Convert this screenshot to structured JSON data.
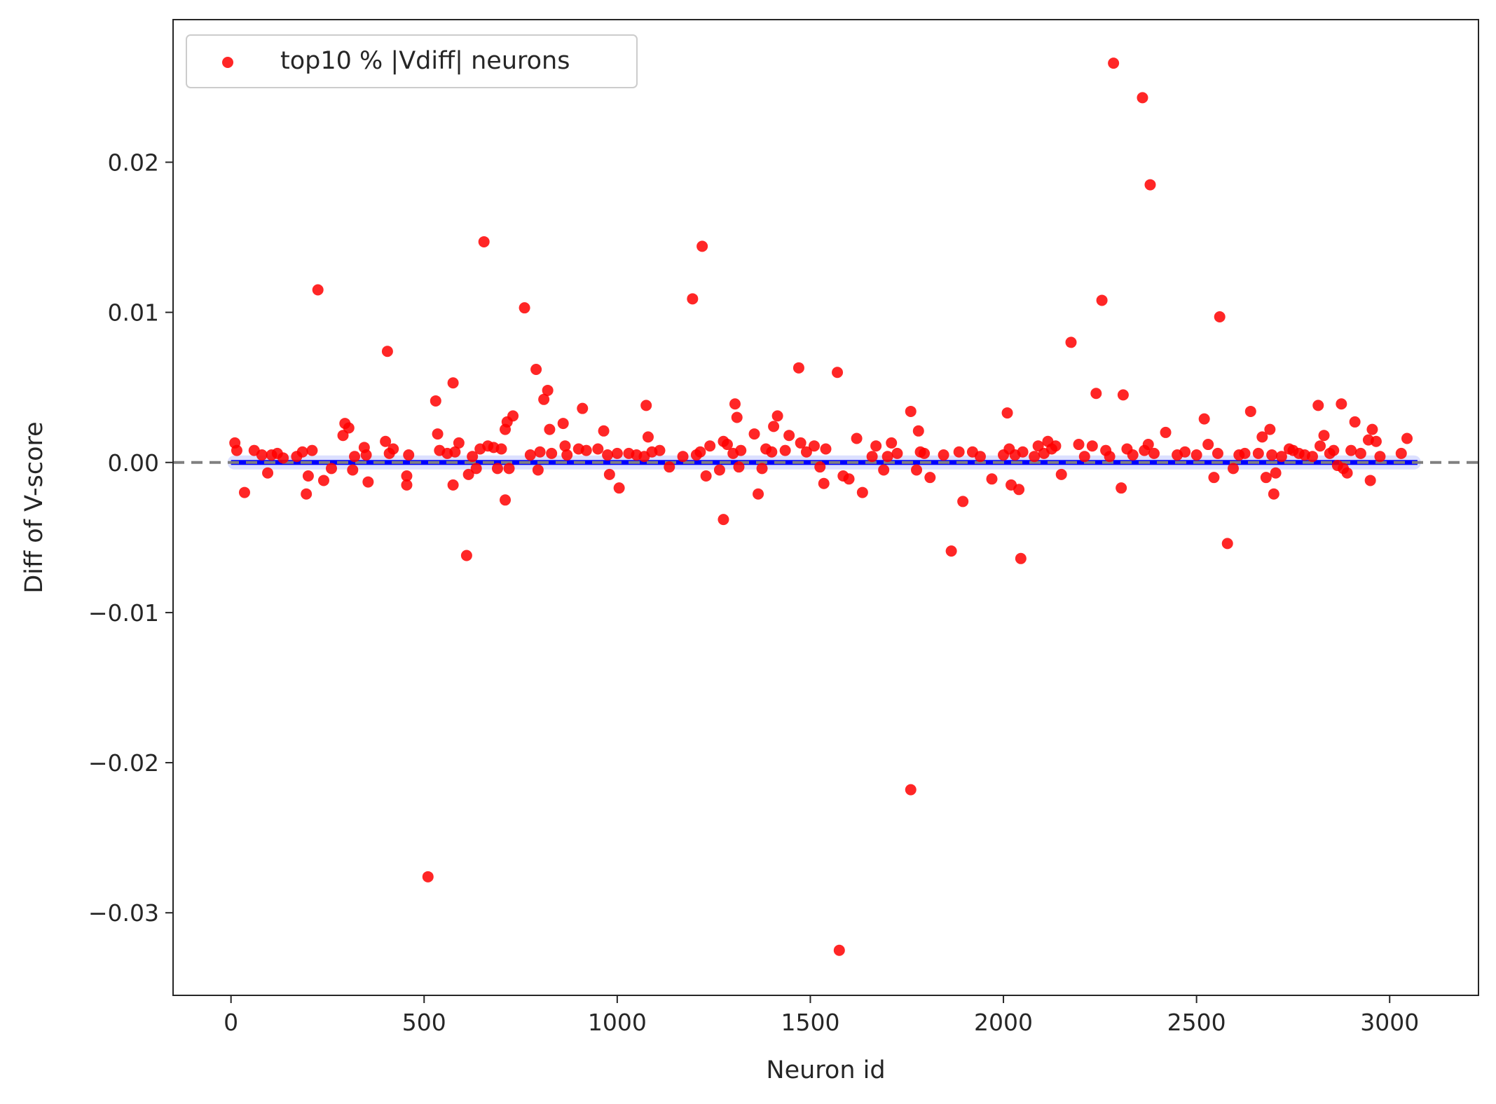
{
  "chart_data": {
    "type": "scatter",
    "title": "",
    "xlabel": "Neuron id",
    "ylabel": "Diff of V-score",
    "xlim": [
      -150,
      3230
    ],
    "ylim": [
      -0.0355,
      0.0295
    ],
    "xticks": [
      0,
      500,
      1000,
      1500,
      2000,
      2500,
      3000
    ],
    "xtick_labels": [
      "0",
      "500",
      "1000",
      "1500",
      "2000",
      "2500",
      "3000"
    ],
    "yticks": [
      -0.03,
      -0.02,
      -0.01,
      0.0,
      0.01,
      0.02
    ],
    "ytick_labels": [
      "−0.03",
      "−0.02",
      "−0.01",
      "0.00",
      "0.01",
      "0.02"
    ],
    "reference_line": {
      "y": 0,
      "style": "dashed",
      "color": "#808080"
    },
    "grid": false,
    "legend": {
      "position": "upper-left",
      "entries": [
        "top10 % |Vdiff| neurons"
      ]
    },
    "series": [
      {
        "kind": "line",
        "color": "#0000ff",
        "x": [
          0,
          3072
        ],
        "y": [
          0,
          0
        ]
      },
      {
        "name": "top10 % |Vdiff| neurons",
        "kind": "scatter",
        "color": "#ff0000",
        "points": [
          [
            10,
            0.0013
          ],
          [
            15,
            0.0008
          ],
          [
            35,
            -0.002
          ],
          [
            60,
            0.0008
          ],
          [
            80,
            0.0005
          ],
          [
            95,
            -0.0007
          ],
          [
            105,
            0.0005
          ],
          [
            120,
            0.0006
          ],
          [
            135,
            0.0003
          ],
          [
            170,
            0.0004
          ],
          [
            185,
            0.0007
          ],
          [
            195,
            -0.0021
          ],
          [
            200,
            -0.0009
          ],
          [
            210,
            0.0008
          ],
          [
            225,
            0.0115
          ],
          [
            240,
            -0.0012
          ],
          [
            260,
            -0.0004
          ],
          [
            290,
            0.0018
          ],
          [
            295,
            0.0026
          ],
          [
            305,
            0.0023
          ],
          [
            315,
            -0.0005
          ],
          [
            320,
            0.0004
          ],
          [
            345,
            0.001
          ],
          [
            350,
            0.0005
          ],
          [
            355,
            -0.0013
          ],
          [
            400,
            0.0014
          ],
          [
            405,
            0.0074
          ],
          [
            410,
            0.0006
          ],
          [
            420,
            0.0009
          ],
          [
            455,
            -0.0009
          ],
          [
            455,
            -0.0015
          ],
          [
            460,
            0.0005
          ],
          [
            510,
            -0.0276
          ],
          [
            530,
            0.0041
          ],
          [
            535,
            0.0019
          ],
          [
            540,
            0.0008
          ],
          [
            560,
            0.0006
          ],
          [
            575,
            0.0053
          ],
          [
            575,
            -0.0015
          ],
          [
            580,
            0.0007
          ],
          [
            590,
            0.0013
          ],
          [
            610,
            -0.0062
          ],
          [
            615,
            -0.0008
          ],
          [
            625,
            0.0004
          ],
          [
            635,
            -0.0004
          ],
          [
            645,
            0.0009
          ],
          [
            655,
            0.0147
          ],
          [
            665,
            0.0011
          ],
          [
            680,
            0.001
          ],
          [
            690,
            -0.0004
          ],
          [
            700,
            0.0009
          ],
          [
            710,
            -0.0025
          ],
          [
            710,
            0.0022
          ],
          [
            715,
            0.0027
          ],
          [
            720,
            -0.0004
          ],
          [
            730,
            0.0031
          ],
          [
            760,
            0.0103
          ],
          [
            775,
            0.0005
          ],
          [
            790,
            0.0062
          ],
          [
            795,
            -0.0005
          ],
          [
            800,
            0.0007
          ],
          [
            810,
            0.0042
          ],
          [
            820,
            0.0048
          ],
          [
            825,
            0.0022
          ],
          [
            830,
            0.0006
          ],
          [
            860,
            0.0026
          ],
          [
            865,
            0.0011
          ],
          [
            870,
            0.0005
          ],
          [
            900,
            0.0009
          ],
          [
            910,
            0.0036
          ],
          [
            920,
            0.0008
          ],
          [
            950,
            0.0009
          ],
          [
            965,
            0.0021
          ],
          [
            975,
            0.0005
          ],
          [
            980,
            -0.0008
          ],
          [
            1000,
            0.0006
          ],
          [
            1005,
            -0.0017
          ],
          [
            1030,
            0.0006
          ],
          [
            1050,
            0.0005
          ],
          [
            1070,
            0.0004
          ],
          [
            1075,
            0.0038
          ],
          [
            1080,
            0.0017
          ],
          [
            1090,
            0.0007
          ],
          [
            1110,
            0.0008
          ],
          [
            1135,
            -0.0003
          ],
          [
            1170,
            0.0004
          ],
          [
            1195,
            0.0109
          ],
          [
            1205,
            0.0005
          ],
          [
            1215,
            0.0007
          ],
          [
            1220,
            0.0144
          ],
          [
            1230,
            -0.0009
          ],
          [
            1240,
            0.0011
          ],
          [
            1265,
            -0.0005
          ],
          [
            1275,
            -0.0038
          ],
          [
            1275,
            0.0014
          ],
          [
            1285,
            0.0012
          ],
          [
            1300,
            0.0006
          ],
          [
            1305,
            0.0039
          ],
          [
            1310,
            0.003
          ],
          [
            1315,
            -0.0003
          ],
          [
            1320,
            0.0008
          ],
          [
            1355,
            0.0019
          ],
          [
            1365,
            -0.0021
          ],
          [
            1375,
            -0.0004
          ],
          [
            1385,
            0.0009
          ],
          [
            1400,
            0.0007
          ],
          [
            1405,
            0.0024
          ],
          [
            1415,
            0.0031
          ],
          [
            1435,
            0.0008
          ],
          [
            1445,
            0.0018
          ],
          [
            1470,
            0.0063
          ],
          [
            1475,
            0.0013
          ],
          [
            1490,
            0.0007
          ],
          [
            1510,
            0.0011
          ],
          [
            1525,
            -0.0003
          ],
          [
            1535,
            -0.0014
          ],
          [
            1540,
            0.0009
          ],
          [
            1570,
            0.006
          ],
          [
            1575,
            -0.0325
          ],
          [
            1585,
            -0.0009
          ],
          [
            1600,
            -0.0011
          ],
          [
            1620,
            0.0016
          ],
          [
            1635,
            -0.002
          ],
          [
            1660,
            0.0004
          ],
          [
            1670,
            0.0011
          ],
          [
            1690,
            -0.0005
          ],
          [
            1700,
            0.0004
          ],
          [
            1710,
            0.0013
          ],
          [
            1725,
            0.0006
          ],
          [
            1760,
            0.0034
          ],
          [
            1760,
            -0.0218
          ],
          [
            1775,
            -0.0005
          ],
          [
            1780,
            0.0021
          ],
          [
            1785,
            0.0007
          ],
          [
            1795,
            0.0006
          ],
          [
            1810,
            -0.001
          ],
          [
            1845,
            0.0005
          ],
          [
            1865,
            -0.0059
          ],
          [
            1885,
            0.0007
          ],
          [
            1895,
            -0.0026
          ],
          [
            1920,
            0.0007
          ],
          [
            1940,
            0.0004
          ],
          [
            1970,
            -0.0011
          ],
          [
            2000,
            0.0005
          ],
          [
            2010,
            0.0033
          ],
          [
            2015,
            0.0009
          ],
          [
            2020,
            -0.0015
          ],
          [
            2030,
            0.0005
          ],
          [
            2040,
            -0.0018
          ],
          [
            2045,
            -0.0064
          ],
          [
            2050,
            0.0007
          ],
          [
            2080,
            0.0004
          ],
          [
            2090,
            0.0011
          ],
          [
            2105,
            0.0006
          ],
          [
            2115,
            0.0014
          ],
          [
            2125,
            0.0009
          ],
          [
            2135,
            0.0011
          ],
          [
            2150,
            -0.0008
          ],
          [
            2175,
            0.008
          ],
          [
            2195,
            0.0012
          ],
          [
            2210,
            0.0004
          ],
          [
            2230,
            0.0011
          ],
          [
            2240,
            0.0046
          ],
          [
            2255,
            0.0108
          ],
          [
            2265,
            0.0008
          ],
          [
            2275,
            0.0004
          ],
          [
            2285,
            0.0266
          ],
          [
            2305,
            -0.0017
          ],
          [
            2310,
            0.0045
          ],
          [
            2320,
            0.0009
          ],
          [
            2335,
            0.0005
          ],
          [
            2360,
            0.0243
          ],
          [
            2365,
            0.0008
          ],
          [
            2375,
            0.0012
          ],
          [
            2380,
            0.0185
          ],
          [
            2390,
            0.0006
          ],
          [
            2420,
            0.002
          ],
          [
            2450,
            0.0005
          ],
          [
            2470,
            0.0007
          ],
          [
            2500,
            0.0005
          ],
          [
            2520,
            0.0029
          ],
          [
            2530,
            0.0012
          ],
          [
            2545,
            -0.001
          ],
          [
            2555,
            0.0006
          ],
          [
            2560,
            0.0097
          ],
          [
            2580,
            -0.0054
          ],
          [
            2595,
            -0.0004
          ],
          [
            2610,
            0.0005
          ],
          [
            2625,
            0.0006
          ],
          [
            2640,
            0.0034
          ],
          [
            2660,
            0.0006
          ],
          [
            2670,
            0.0017
          ],
          [
            2680,
            -0.001
          ],
          [
            2690,
            0.0022
          ],
          [
            2695,
            0.0005
          ],
          [
            2700,
            -0.0021
          ],
          [
            2705,
            -0.0007
          ],
          [
            2720,
            0.0004
          ],
          [
            2740,
            0.0009
          ],
          [
            2750,
            0.0008
          ],
          [
            2765,
            0.0006
          ],
          [
            2780,
            0.0005
          ],
          [
            2800,
            0.0004
          ],
          [
            2815,
            0.0038
          ],
          [
            2820,
            0.0011
          ],
          [
            2830,
            0.0018
          ],
          [
            2845,
            0.0006
          ],
          [
            2855,
            0.0008
          ],
          [
            2865,
            -0.0002
          ],
          [
            2875,
            0.0039
          ],
          [
            2880,
            -0.0004
          ],
          [
            2890,
            -0.0007
          ],
          [
            2900,
            0.0008
          ],
          [
            2910,
            0.0027
          ],
          [
            2925,
            0.0006
          ],
          [
            2945,
            0.0015
          ],
          [
            2950,
            -0.0012
          ],
          [
            2955,
            0.0022
          ],
          [
            2965,
            0.0014
          ],
          [
            2975,
            0.0004
          ],
          [
            3030,
            0.0006
          ],
          [
            3045,
            0.0016
          ]
        ]
      }
    ]
  }
}
